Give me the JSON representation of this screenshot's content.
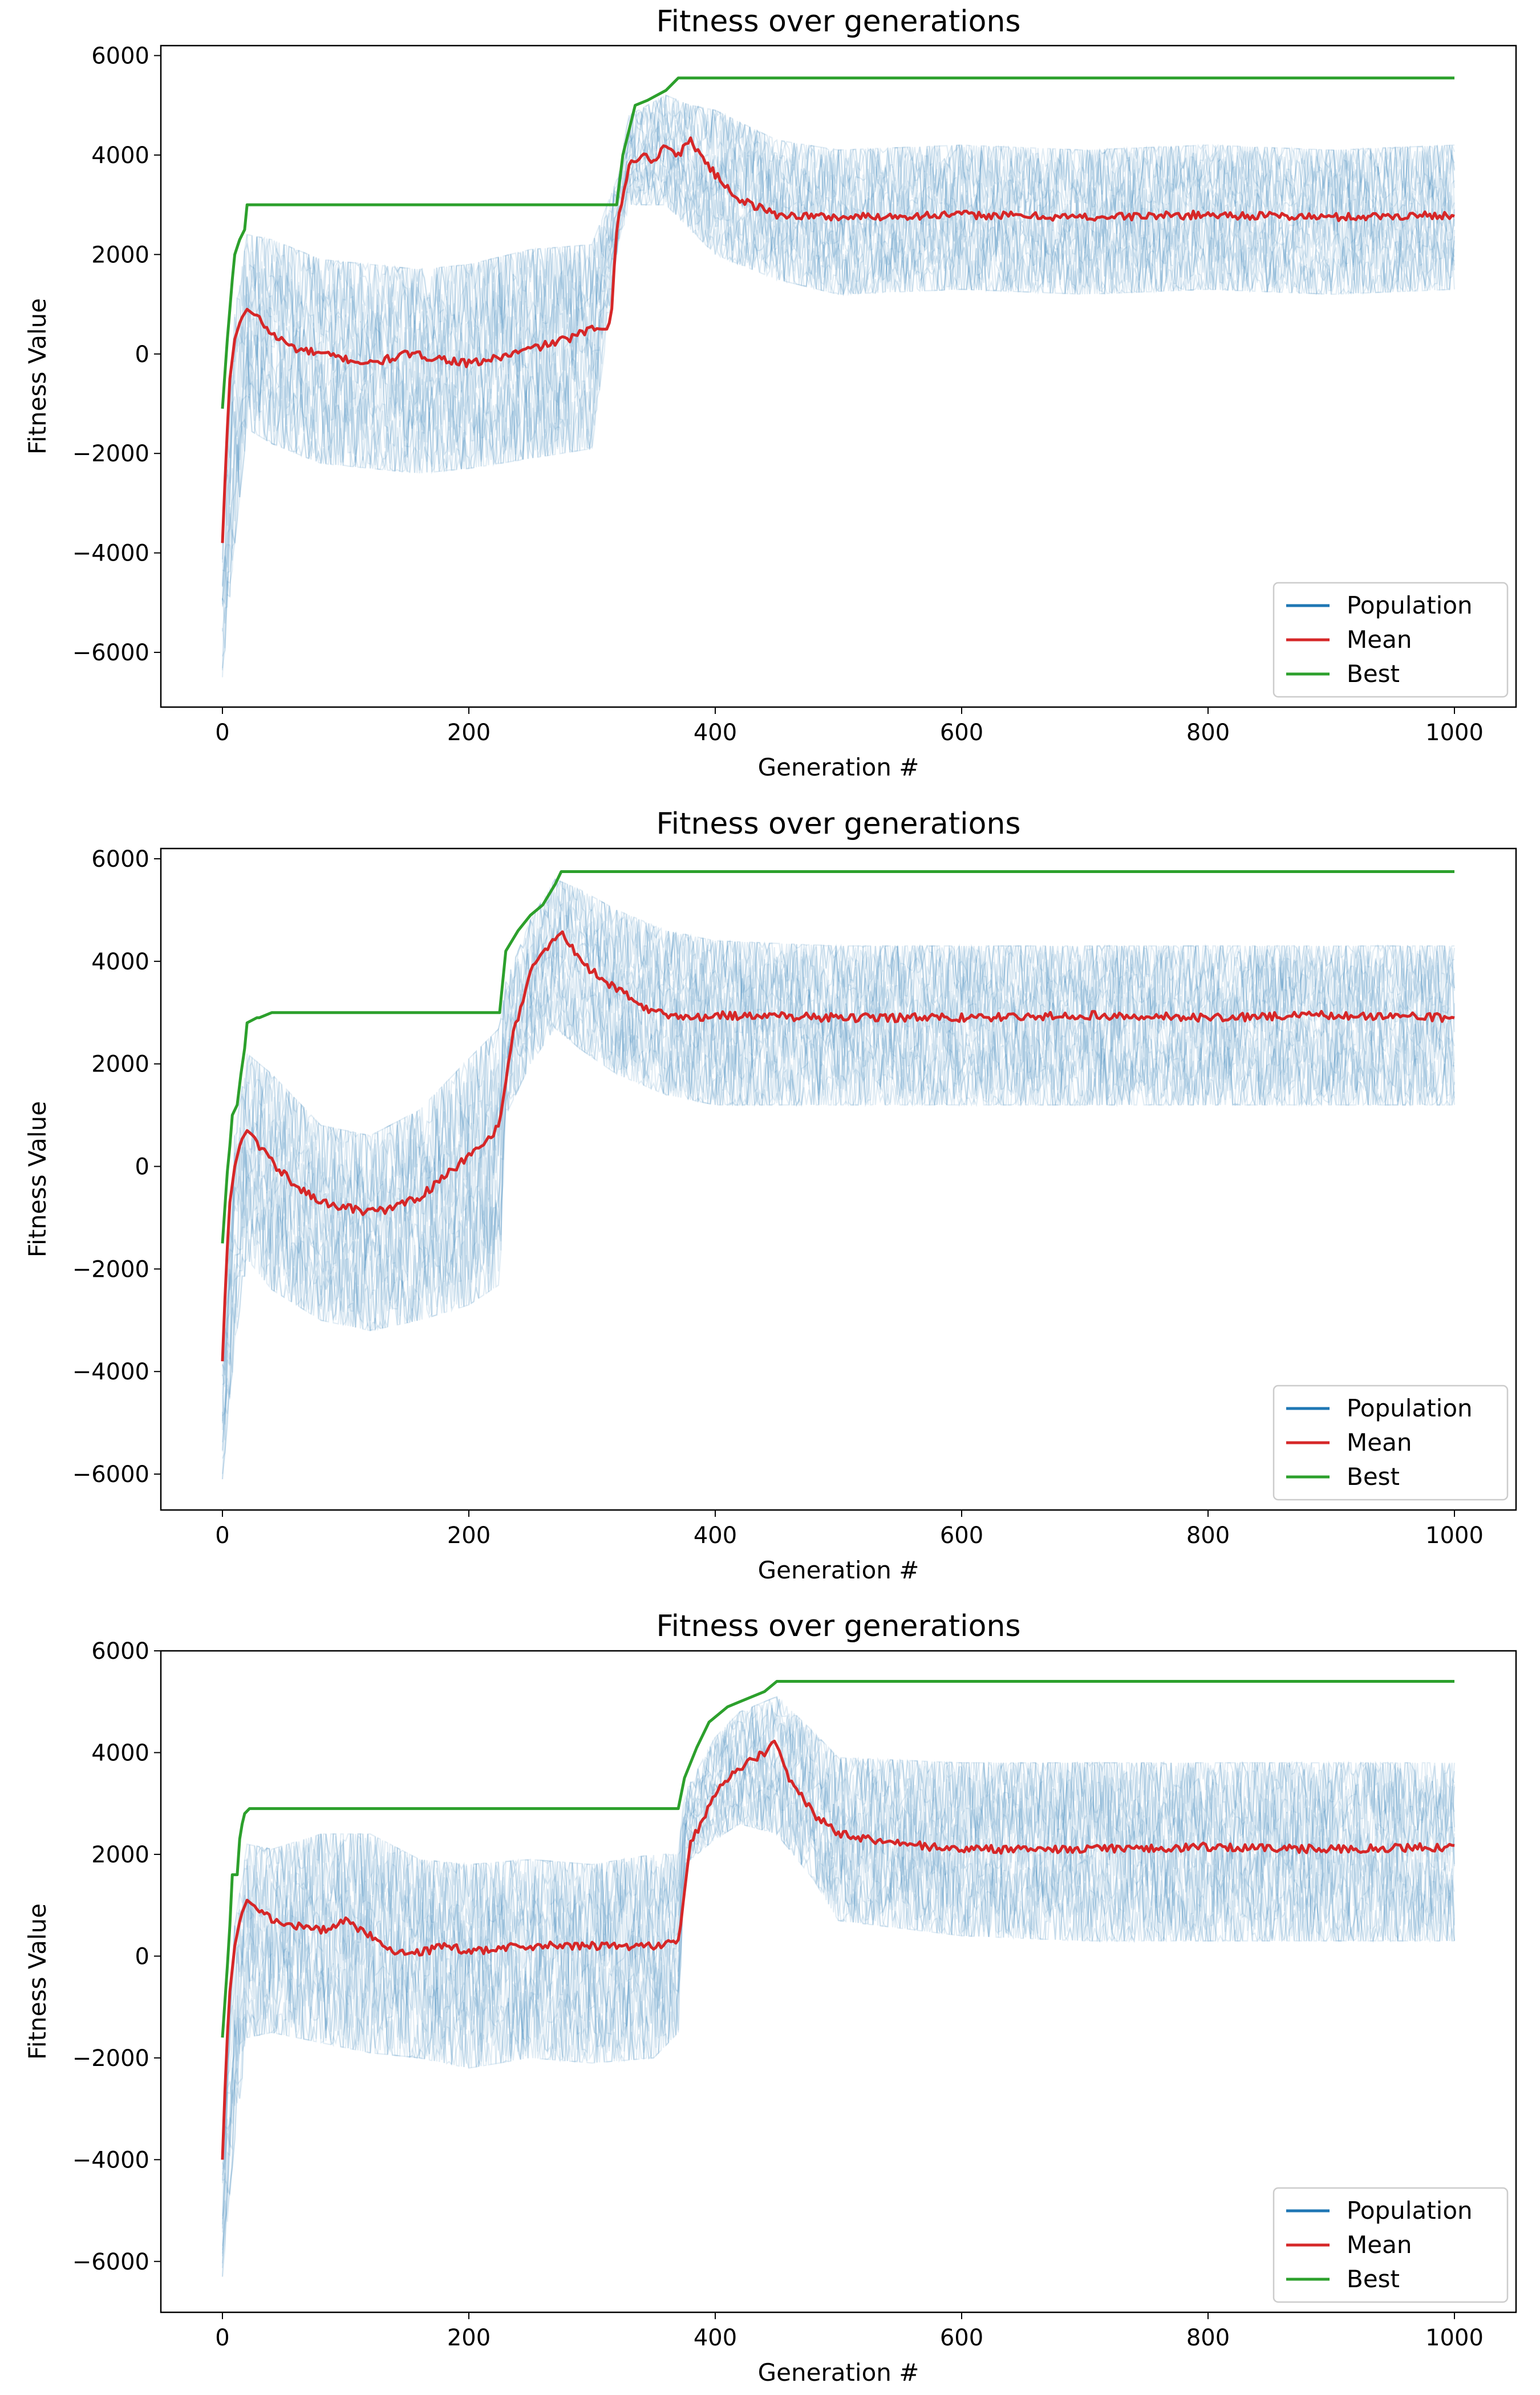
{
  "colors": {
    "population": "#1f77b4",
    "mean": "#d62728",
    "best": "#2ca02c",
    "axis": "#000000",
    "legend_border": "#cccccc"
  },
  "chart_data": [
    {
      "type": "line",
      "title": "Fitness over generations",
      "xlabel": "Generation #",
      "ylabel": "Fitness Value",
      "xlim": [
        -50,
        1050
      ],
      "ylim": [
        -7100,
        6200
      ],
      "xticks": [
        0,
        200,
        400,
        600,
        800,
        1000
      ],
      "xtick_labels": [
        "0",
        "200",
        "400",
        "600",
        "800",
        "1000"
      ],
      "yticks": [
        -6000,
        -4000,
        -2000,
        0,
        2000,
        4000,
        6000
      ],
      "ytick_labels": [
        "−6000",
        "−4000",
        "−2000",
        "0",
        "2000",
        "4000",
        "6000"
      ],
      "legend": {
        "location": "lower-right",
        "entries": [
          "Population",
          "Mean",
          "Best"
        ]
      },
      "series": [
        {
          "name": "Best",
          "x": [
            0,
            4,
            6,
            8,
            10,
            14,
            18,
            20,
            22,
            320,
            325,
            330,
            335,
            345,
            360,
            370,
            1000
          ],
          "y": [
            -1100,
            300,
            900,
            1500,
            2000,
            2300,
            2500,
            3000,
            3000,
            3000,
            4000,
            4500,
            5000,
            5100,
            5300,
            5550,
            5550
          ]
        },
        {
          "name": "Mean",
          "x": [
            0,
            3,
            6,
            10,
            15,
            20,
            30,
            40,
            60,
            80,
            100,
            120,
            150,
            180,
            200,
            220,
            250,
            280,
            300,
            315,
            320,
            330,
            340,
            350,
            360,
            370,
            380,
            400,
            420,
            450,
            500,
            600,
            700,
            800,
            900,
            1000
          ],
          "y": [
            -3800,
            -2000,
            -500,
            300,
            700,
            900,
            700,
            400,
            100,
            0,
            -100,
            -200,
            0,
            -100,
            -200,
            -100,
            100,
            300,
            500,
            600,
            2500,
            3800,
            4000,
            3900,
            4200,
            4000,
            4300,
            3600,
            3100,
            2800,
            2750,
            2800,
            2750,
            2800,
            2750,
            2800
          ]
        },
        {
          "name": "Population",
          "envelope_x": [
            0,
            10,
            20,
            40,
            80,
            120,
            160,
            200,
            250,
            300,
            320,
            330,
            360,
            380,
            400,
            450,
            500,
            600,
            700,
            800,
            900,
            1000
          ],
          "envelope_upper": [
            -3500,
            800,
            2400,
            2300,
            1900,
            1800,
            1700,
            1800,
            2100,
            2200,
            3500,
            4800,
            5200,
            5000,
            4900,
            4300,
            4100,
            4200,
            4100,
            4200,
            4100,
            4200
          ],
          "envelope_lower": [
            -6500,
            -3800,
            -1500,
            -1800,
            -2200,
            -2300,
            -2400,
            -2300,
            -2100,
            -1900,
            2000,
            3000,
            3000,
            2500,
            2000,
            1500,
            1200,
            1300,
            1200,
            1300,
            1200,
            1300
          ]
        }
      ]
    },
    {
      "type": "line",
      "title": "Fitness over generations",
      "xlabel": "Generation #",
      "ylabel": "Fitness Value",
      "xlim": [
        -50,
        1050
      ],
      "ylim": [
        -6700,
        6200
      ],
      "xticks": [
        0,
        200,
        400,
        600,
        800,
        1000
      ],
      "xtick_labels": [
        "0",
        "200",
        "400",
        "600",
        "800",
        "1000"
      ],
      "yticks": [
        -6000,
        -4000,
        -2000,
        0,
        2000,
        4000,
        6000
      ],
      "ytick_labels": [
        "−6000",
        "−4000",
        "−2000",
        "0",
        "2000",
        "4000",
        "6000"
      ],
      "legend": {
        "location": "lower-right",
        "entries": [
          "Population",
          "Mean",
          "Best"
        ]
      },
      "series": [
        {
          "name": "Best",
          "x": [
            0,
            4,
            6,
            8,
            12,
            15,
            18,
            20,
            28,
            30,
            40,
            225,
            230,
            240,
            250,
            260,
            270,
            275,
            1000
          ],
          "y": [
            -1500,
            -100,
            400,
            1000,
            1200,
            1800,
            2300,
            2800,
            2900,
            2900,
            3000,
            3000,
            4200,
            4600,
            4900,
            5100,
            5500,
            5750,
            5750
          ]
        },
        {
          "name": "Mean",
          "x": [
            0,
            3,
            6,
            10,
            15,
            20,
            25,
            30,
            40,
            60,
            80,
            100,
            120,
            140,
            160,
            180,
            200,
            215,
            225,
            235,
            250,
            265,
            275,
            285,
            300,
            330,
            350,
            380,
            400,
            500,
            600,
            700,
            800,
            900,
            1000
          ],
          "y": [
            -3800,
            -2000,
            -700,
            0,
            500,
            700,
            600,
            400,
            100,
            -400,
            -700,
            -800,
            -900,
            -800,
            -600,
            -200,
            200,
            500,
            800,
            2500,
            3800,
            4300,
            4600,
            4200,
            3800,
            3300,
            3000,
            2900,
            2950,
            2900,
            2900,
            2950,
            2900,
            2950,
            2900
          ]
        },
        {
          "name": "Population",
          "envelope_x": [
            0,
            10,
            20,
            40,
            80,
            120,
            160,
            200,
            225,
            230,
            250,
            270,
            290,
            320,
            360,
            400,
            500,
            600,
            700,
            800,
            900,
            1000
          ],
          "envelope_upper": [
            -3600,
            600,
            2200,
            1800,
            800,
            600,
            1100,
            2100,
            2700,
            3600,
            4800,
            5600,
            5400,
            5000,
            4600,
            4400,
            4300,
            4300,
            4300,
            4300,
            4300,
            4300
          ],
          "envelope_lower": [
            -6100,
            -3500,
            -1800,
            -2400,
            -3000,
            -3200,
            -3000,
            -2700,
            -2300,
            1000,
            2000,
            2700,
            2300,
            1800,
            1400,
            1200,
            1200,
            1200,
            1200,
            1200,
            1200,
            1200
          ]
        }
      ]
    },
    {
      "type": "line",
      "title": "Fitness over generations",
      "xlabel": "Generation #",
      "ylabel": "Fitness Value",
      "xlim": [
        -50,
        1050
      ],
      "ylim": [
        -7000,
        6000
      ],
      "xticks": [
        0,
        200,
        400,
        600,
        800,
        1000
      ],
      "xtick_labels": [
        "0",
        "200",
        "400",
        "600",
        "800",
        "1000"
      ],
      "yticks": [
        -6000,
        -4000,
        -2000,
        0,
        2000,
        4000,
        6000
      ],
      "ytick_labels": [
        "−6000",
        "−4000",
        "−2000",
        "0",
        "2000",
        "4000",
        "6000"
      ],
      "legend": {
        "location": "lower-right",
        "entries": [
          "Population",
          "Mean",
          "Best"
        ]
      },
      "series": [
        {
          "name": "Best",
          "x": [
            0,
            4,
            6,
            8,
            12,
            14,
            16,
            18,
            22,
            370,
            375,
            385,
            395,
            410,
            420,
            440,
            450,
            1000
          ],
          "y": [
            -1600,
            -200,
            600,
            1600,
            1600,
            2300,
            2600,
            2800,
            2900,
            2900,
            3500,
            4100,
            4600,
            4900,
            5000,
            5200,
            5400,
            5400
          ]
        },
        {
          "name": "Mean",
          "x": [
            0,
            3,
            6,
            10,
            15,
            20,
            30,
            40,
            60,
            80,
            100,
            120,
            140,
            150,
            180,
            200,
            250,
            300,
            350,
            370,
            380,
            400,
            420,
            440,
            450,
            460,
            480,
            500,
            550,
            600,
            700,
            800,
            900,
            1000
          ],
          "y": [
            -4000,
            -2000,
            -700,
            200,
            800,
            1100,
            900,
            700,
            600,
            500,
            700,
            400,
            100,
            0,
            200,
            100,
            200,
            200,
            200,
            300,
            2200,
            3200,
            3700,
            4000,
            4200,
            3500,
            2800,
            2400,
            2200,
            2100,
            2100,
            2150,
            2100,
            2150
          ]
        },
        {
          "name": "Population",
          "envelope_x": [
            0,
            10,
            20,
            40,
            80,
            120,
            160,
            200,
            250,
            300,
            350,
            370,
            375,
            400,
            420,
            450,
            480,
            500,
            600,
            700,
            800,
            900,
            1000
          ],
          "envelope_upper": [
            -3800,
            600,
            2200,
            2100,
            2400,
            2400,
            1900,
            1800,
            1900,
            1800,
            2000,
            2000,
            3200,
            4300,
            4800,
            5100,
            4400,
            3900,
            3800,
            3800,
            3800,
            3800,
            3800
          ],
          "envelope_lower": [
            -6300,
            -3600,
            -1600,
            -1500,
            -1700,
            -1900,
            -2000,
            -2200,
            -2000,
            -2100,
            -2000,
            -1500,
            1800,
            2300,
            2600,
            2400,
            1500,
            700,
            400,
            300,
            300,
            300,
            300
          ]
        }
      ]
    }
  ]
}
